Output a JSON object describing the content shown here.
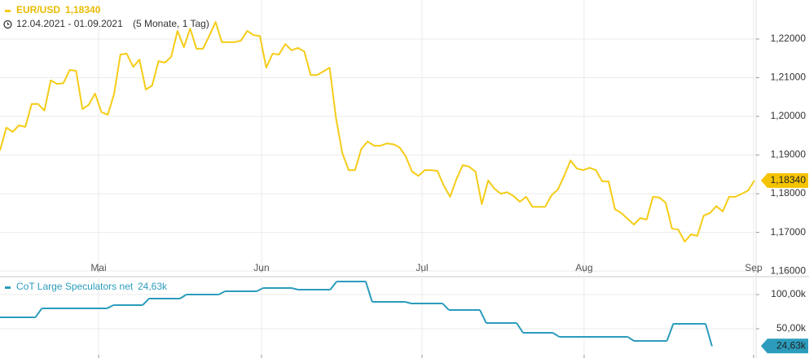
{
  "chart_data": [
    {
      "type": "line",
      "title": "EUR/USD",
      "subtitle": "12.04.2021 - 01.09.2021",
      "annotation": "(5 Monate, 1 Tag)",
      "color": "#f5cc17",
      "values": [
        1.1912,
        1.1971,
        1.196,
        1.1977,
        1.1973,
        1.2032,
        1.2032,
        1.2015,
        1.2093,
        1.2084,
        1.2086,
        1.212,
        1.2118,
        1.2019,
        1.203,
        1.2059,
        1.2011,
        1.2004,
        1.2059,
        1.216,
        1.2162,
        1.2128,
        1.2147,
        1.2069,
        1.208,
        1.2143,
        1.2139,
        1.2154,
        1.2221,
        1.2179,
        1.2227,
        1.2175,
        1.2175,
        1.2208,
        1.2244,
        1.2192,
        1.2192,
        1.2192,
        1.2196,
        1.2221,
        1.221,
        1.2208,
        1.2126,
        1.2162,
        1.216,
        1.2187,
        1.2171,
        1.2177,
        1.2168,
        1.2107,
        1.2107,
        1.2116,
        1.2126,
        1.1996,
        1.1905,
        1.1861,
        1.1861,
        1.1916,
        1.1935,
        1.1924,
        1.1924,
        1.193,
        1.1928,
        1.192,
        1.1897,
        1.1857,
        1.1846,
        1.1861,
        1.1861,
        1.1859,
        1.1821,
        1.1792,
        1.1838,
        1.1874,
        1.187,
        1.1857,
        1.1773,
        1.1834,
        1.1813,
        1.18,
        1.1804,
        1.1794,
        1.1779,
        1.1792,
        1.1766,
        1.1766,
        1.1766,
        1.1796,
        1.1811,
        1.1846,
        1.1886,
        1.1865,
        1.1861,
        1.1867,
        1.1861,
        1.1832,
        1.1832,
        1.176,
        1.175,
        1.1735,
        1.172,
        1.1737,
        1.1733,
        1.1792,
        1.179,
        1.1777,
        1.171,
        1.1707,
        1.1676,
        1.1695,
        1.1691,
        1.1743,
        1.175,
        1.1768,
        1.1754,
        1.1792,
        1.1792,
        1.18,
        1.1808,
        1.1834
      ],
      "last_value": 1.1834,
      "last_value_label": "1,18340",
      "xlim": [
        0,
        119.26
      ],
      "xticks": [
        {
          "value": 15.55,
          "label": "Mai"
        },
        {
          "value": 41.25,
          "label": "Jun"
        },
        {
          "value": 66.57,
          "label": "Jul"
        },
        {
          "value": 92.14,
          "label": "Aug"
        },
        {
          "value": 118.87,
          "label": "Sep"
        }
      ],
      "ylim": [
        1.1596,
        1.2301
      ],
      "yticks": [
        {
          "value": 1.16,
          "label": "1,16000"
        },
        {
          "value": 1.17,
          "label": "1,17000"
        },
        {
          "value": 1.18,
          "label": "1,18000"
        },
        {
          "value": 1.19,
          "label": "1,19000"
        },
        {
          "value": 1.2,
          "label": "1,20000"
        },
        {
          "value": 1.21,
          "label": "1,21000"
        },
        {
          "value": 1.22,
          "label": "1,22000"
        }
      ],
      "grid": true
    },
    {
      "type": "step",
      "title": "CoT Large Speculators net",
      "color": "#2b9cbc",
      "x": [
        0,
        6.6,
        17.9,
        23.5,
        29.4,
        35.5,
        41.5,
        47.0,
        53.1,
        58.7,
        64.9,
        70.8,
        76.7,
        82.5,
        88.2,
        100.0,
        106.2,
        112.3
      ],
      "values": [
        66.7,
        79.8,
        84.5,
        94.0,
        100.0,
        104.8,
        109.5,
        107.1,
        119.0,
        89.3,
        86.9,
        77.4,
        58.3,
        44.0,
        38.1,
        32.1,
        57.1,
        24.63
      ],
      "last_value": 24.63,
      "last_value_label": "24,63k",
      "xlim": [
        0,
        119.26
      ],
      "xticks": [
        15.55,
        41.25,
        66.57,
        92.14,
        118.87
      ],
      "ylim": [
        7.1,
        123.8
      ],
      "yticks": [
        {
          "value": 50,
          "label": "50,00k"
        },
        {
          "value": 100,
          "label": "100,00k"
        }
      ],
      "grid": true
    }
  ]
}
